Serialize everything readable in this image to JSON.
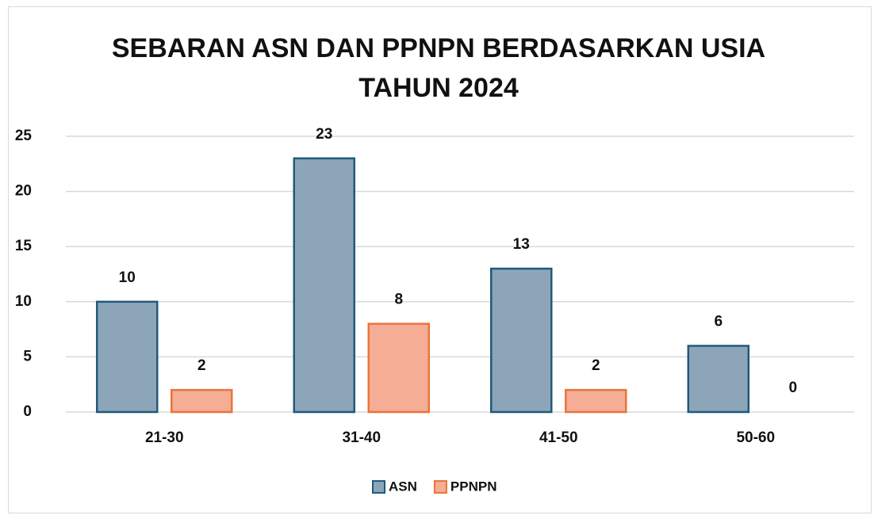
{
  "chart_data": {
    "type": "bar",
    "title": "SEBARAN ASN DAN PPNPN BERDASARKAN USIA TAHUN 2024",
    "categories": [
      "21-30",
      "31-40",
      "41-50",
      "50-60"
    ],
    "series": [
      {
        "name": "ASN",
        "color": "#8da5b9",
        "edgecolor": "#1f5a7a",
        "values": [
          10,
          23,
          13,
          6
        ]
      },
      {
        "name": "PPNPN",
        "color": "#f5ad95",
        "edgecolor": "#e9743a",
        "values": [
          2,
          8,
          2,
          0
        ]
      }
    ],
    "ylim": [
      0,
      25
    ],
    "yticks": [
      0,
      5,
      10,
      15,
      20,
      25
    ],
    "grid": true,
    "legend": "bottom"
  }
}
